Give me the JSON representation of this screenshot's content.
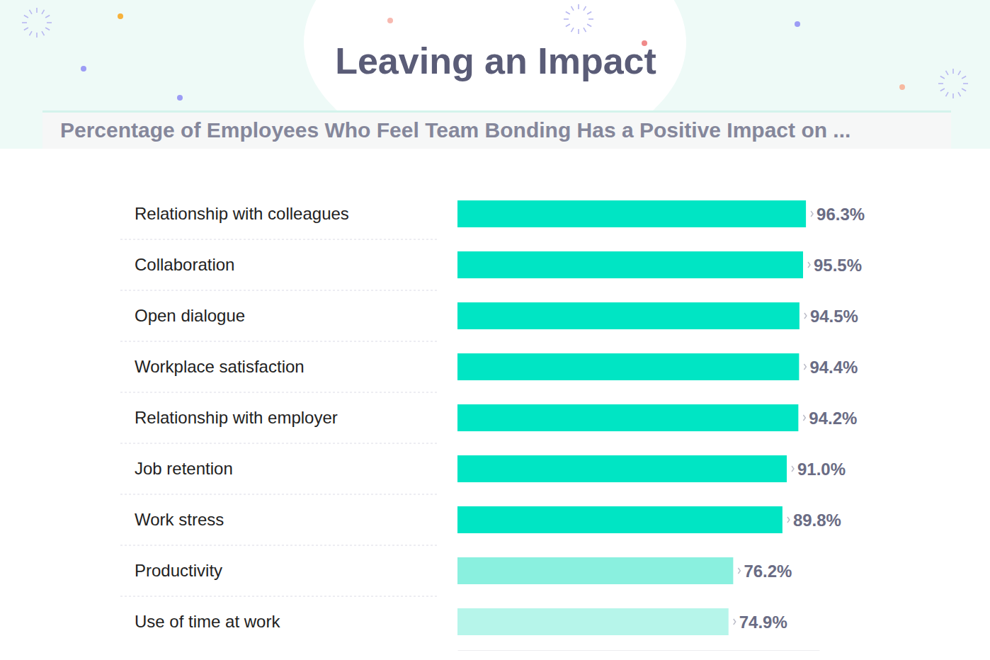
{
  "chart_data": {
    "type": "bar",
    "orientation": "horizontal",
    "title": "Leaving an Impact",
    "subtitle": "Percentage of Employees Who Feel Team Bonding Has a Positive Impact on ...",
    "categories": [
      "Relationship with colleagues",
      "Collaboration",
      "Open dialogue",
      "Workplace satisfaction",
      "Relationship with employer",
      "Job retention",
      "Work stress",
      "Productivity",
      "Use of time at work"
    ],
    "values": [
      96.3,
      95.5,
      94.5,
      94.4,
      94.2,
      91.0,
      89.8,
      76.2,
      74.9
    ],
    "value_labels": [
      "96.3%",
      "95.5%",
      "94.5%",
      "94.4%",
      "94.2%",
      "91.0%",
      "89.8%",
      "76.2%",
      "74.9%"
    ],
    "colors": [
      "#00e5c4",
      "#00e5c4",
      "#00e5c4",
      "#00e5c4",
      "#00e5c4",
      "#00e5c4",
      "#00e5c4",
      "#8af0df",
      "#b6f5ea"
    ],
    "xlim": [
      0,
      100
    ],
    "grid": false,
    "data_labels": true,
    "tick_labels": "y"
  }
}
